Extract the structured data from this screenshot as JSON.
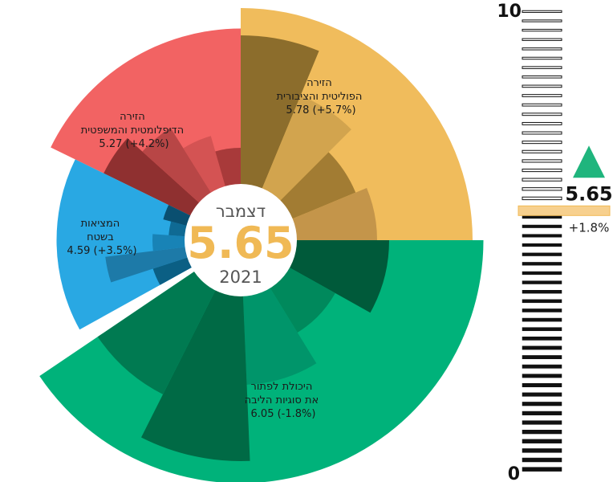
{
  "chart_data": {
    "type": "polar-area",
    "center": {
      "month": "דצמבר",
      "value": "5.65",
      "year": "2021"
    },
    "segments": [
      {
        "label_lines": [
          "הזירה",
          "הפוליטית והציבורית"
        ],
        "value_text": "5.78 (+5.7%)",
        "value": 5.78,
        "change_pct": 5.7,
        "color": "#f0bc5c",
        "inner_colors": [
          "#8c6d2c",
          "#d2a44e",
          "#a27c33",
          "#c4954a"
        ],
        "inner_values": [
          5.1,
          3.9,
          3.1,
          3.4
        ]
      },
      {
        "label_lines": [
          "הזירה",
          "הדיפלומטית והמשפטית"
        ],
        "value_text": "5.27 (+4.2%)",
        "value": 5.27,
        "change_pct": 4.2,
        "color": "#f26363",
        "inner_colors": [
          "#8f3030",
          "#b84646",
          "#d45353",
          "#a83a3a"
        ],
        "inner_values": [
          3.8,
          3.3,
          2.7,
          2.3
        ]
      },
      {
        "label_lines": [
          "המציאות",
          "בשטח"
        ],
        "value_text": "4.59 (+3.5%)",
        "value": 4.59,
        "change_pct": 3.5,
        "color": "#29a8e3",
        "inner_colors": [
          "#0b5f84",
          "#1d7aa8",
          "#1883b6",
          "#0f6a94",
          "#0a4f70"
        ],
        "inner_values": [
          2.3,
          3.4,
          2.2,
          1.8,
          2.0
        ]
      },
      {
        "label_lines": [
          "היכולת לפתור",
          "את סוגיות הליבה"
        ],
        "value_text": "6.05 (-1.8%)",
        "value": 6.05,
        "change_pct": -1.8,
        "color": "#00b27a",
        "inner_colors": [
          "#005a3a",
          "#00895c",
          "#00956a",
          "#006a45",
          "#007a51"
        ],
        "inner_values": [
          3.7,
          2.7,
          3.6,
          5.5,
          4.3
        ]
      }
    ],
    "gauge": {
      "min": 0,
      "max": 10,
      "min_label": "0",
      "max_label": "10",
      "value": 5.65,
      "value_label": "5.65",
      "change_label": "+1.8%",
      "trend": "up",
      "marker_color": "#f7d08e",
      "trend_color": "#1fb57d"
    }
  }
}
